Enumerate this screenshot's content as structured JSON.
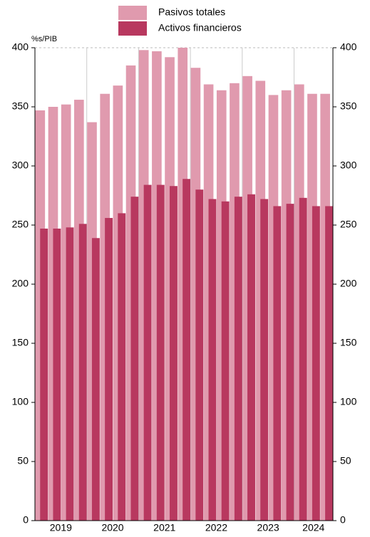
{
  "chart_data": {
    "type": "overlap-bar",
    "unit_label": "%s/PIB",
    "categories": [
      "2019",
      null,
      null,
      null,
      "2020",
      null,
      null,
      null,
      "2021",
      null,
      null,
      null,
      "2022",
      null,
      null,
      null,
      "2023",
      null,
      null,
      null,
      "2024",
      null,
      null
    ],
    "series": [
      {
        "name": "Pasivos totales",
        "color": "#e09aae",
        "values": [
          347,
          350,
          352,
          356,
          337,
          361,
          368,
          385,
          398,
          397,
          392,
          400,
          383,
          369,
          364,
          370,
          376,
          372,
          360,
          364,
          369,
          361,
          361
        ]
      },
      {
        "name": "Activos financieros",
        "color": "#b8385f",
        "values": [
          247,
          247,
          248,
          251,
          239,
          256,
          260,
          274,
          284,
          284,
          283,
          289,
          280,
          272,
          270,
          274,
          276,
          272,
          266,
          268,
          273,
          266,
          266
        ]
      }
    ],
    "ylim": [
      0,
      400
    ],
    "yticks": [
      0,
      50,
      100,
      150,
      200,
      250,
      300,
      350,
      400
    ],
    "grid": true
  }
}
